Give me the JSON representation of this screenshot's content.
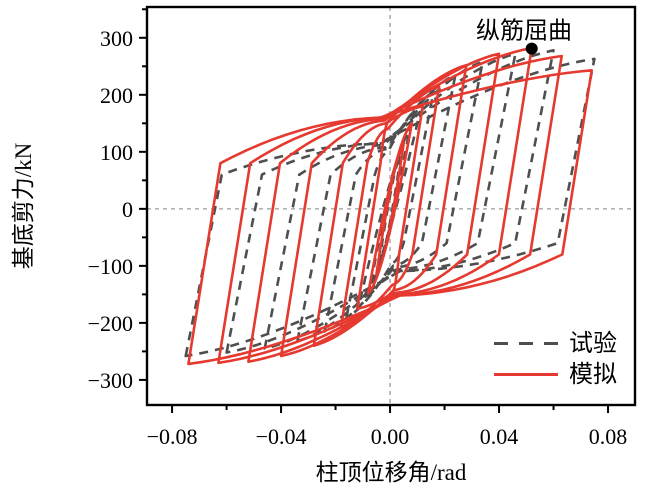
{
  "chart_data": {
    "type": "line",
    "subtype": "hysteresis-loops",
    "title": "",
    "xlabel": "柱顶位移角/rad",
    "ylabel": "基底剪力/kN",
    "xlim": [
      -0.0892,
      0.0899
    ],
    "ylim": [
      -344,
      354
    ],
    "grid": false,
    "zero_reference_lines": true,
    "legend_position": "bottom-right",
    "x_ticks": [
      {
        "value": -0.08,
        "label": "−0.08"
      },
      {
        "value": -0.04,
        "label": "−0.04"
      },
      {
        "value": 0.0,
        "label": "0.00"
      },
      {
        "value": 0.04,
        "label": "0.04"
      },
      {
        "value": 0.08,
        "label": "0.08"
      }
    ],
    "x_minor_ticks": [
      -0.06,
      -0.02,
      0.02,
      0.06
    ],
    "y_ticks": [
      {
        "value": 300,
        "label": "300"
      },
      {
        "value": 200,
        "label": "200"
      },
      {
        "value": 100,
        "label": "100"
      },
      {
        "value": 0,
        "label": "0"
      },
      {
        "value": -100,
        "label": "−100"
      },
      {
        "value": -200,
        "label": "−200"
      },
      {
        "value": -300,
        "label": "−300"
      }
    ],
    "y_minor_ticks": [
      350,
      250,
      150,
      50,
      -50,
      -150,
      -250
    ],
    "colors": {
      "experiment": "#4f4f4f",
      "simulation": "#e6392f",
      "frame": "#000000",
      "zero_line": "#9b9b9b",
      "annotation_dot": "#000000"
    },
    "series": [
      {
        "name": "试验",
        "style": "dashed",
        "color_key": "experiment",
        "line_width": 2.6,
        "dash": "9 7",
        "shape": {
          "ku": 24000,
          "unload_force": 60,
          "waist_x_frac": 0.05,
          "waist_default_frac": 0.8,
          "small_c": [
            0.68,
            0.93
          ]
        },
        "cycles": [
          {
            "amplitude": 0.004,
            "peak_pos": 95,
            "peak_neg": 95
          },
          {
            "amplitude": 0.007,
            "peak_pos": 135,
            "peak_neg": 130
          },
          {
            "amplitude": 0.011,
            "peak_pos": 170,
            "peak_neg": 160
          },
          {
            "amplitude": 0.016,
            "peak_pos": 205,
            "peak_neg": 190,
            "waist": 100
          },
          {
            "amplitude": 0.024,
            "peak_pos": 235,
            "peak_neg": 215,
            "waist": 105
          },
          {
            "amplitude": 0.034,
            "peak_pos": 258,
            "peak_neg": 232,
            "waist": 108
          },
          {
            "amplitude": 0.046,
            "peak_pos": 272,
            "peak_neg": 245,
            "waist": 112
          },
          {
            "amplitude": 0.06,
            "peak_pos": 278,
            "peak_neg": 252,
            "waist": 115
          },
          {
            "amplitude": 0.075,
            "peak_pos": 263,
            "peak_neg": 258,
            "waist": 115
          }
        ]
      },
      {
        "name": "模拟",
        "style": "solid",
        "color_key": "simulation",
        "line_width": 2.6,
        "dash": null,
        "shape": {
          "ku": 30000,
          "unload_force": 80,
          "waist_x_frac": 0.05,
          "waist_default_frac": 0.85,
          "small_c": [
            0.65,
            0.92
          ]
        },
        "cycles": [
          {
            "amplitude": 0.005,
            "peak_pos": 115,
            "peak_neg": 115
          },
          {
            "amplitude": 0.008,
            "peak_pos": 150,
            "peak_neg": 148
          },
          {
            "amplitude": 0.012,
            "peak_pos": 180,
            "peak_neg": 175
          },
          {
            "amplitude": 0.018,
            "peak_pos": 215,
            "peak_neg": 208,
            "waist": 140
          },
          {
            "amplitude": 0.028,
            "peak_pos": 252,
            "peak_neg": 240,
            "waist": 150
          },
          {
            "amplitude": 0.04,
            "peak_pos": 272,
            "peak_neg": 258,
            "waist": 155
          },
          {
            "amplitude": 0.052,
            "peak_pos": 282,
            "peak_neg": 268,
            "waist": 158
          },
          {
            "amplitude": 0.063,
            "peak_pos": 268,
            "peak_neg": 270,
            "waist": 160
          },
          {
            "amplitude": 0.074,
            "peak_pos": 243,
            "peak_neg": 272,
            "waist": 160
          }
        ]
      }
    ],
    "annotations": [
      {
        "text": "纵筋屈曲",
        "x": 0.052,
        "y": 281,
        "dot": true,
        "dot_radius": 6
      }
    ]
  }
}
